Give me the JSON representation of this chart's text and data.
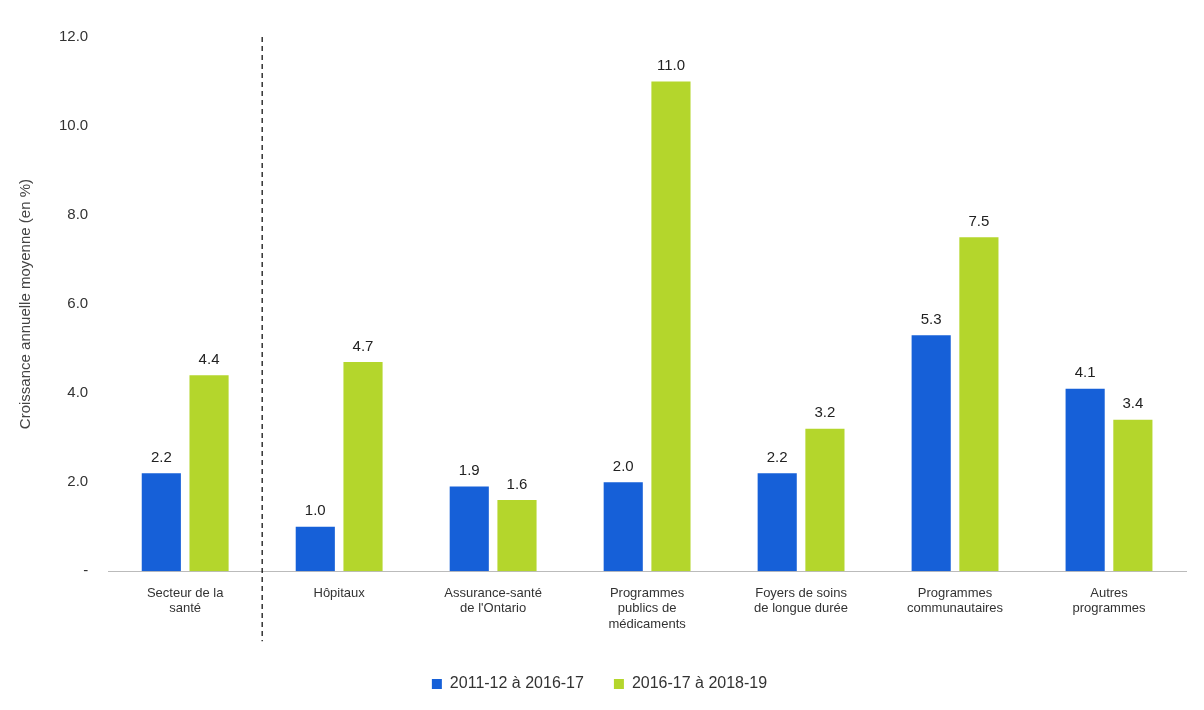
{
  "chart_data": {
    "type": "bar",
    "ylabel": "Croissance annuelle moyenne (en %)",
    "categories": [
      "Secteur de la santé",
      "Hôpitaux",
      "Assurance-santé de l'Ontario",
      "Programmes publics de médicaments",
      "Foyers de soins de longue durée",
      "Programmes communautaires",
      "Autres programmes"
    ],
    "series": [
      {
        "name": "2011-12 à 2016-17",
        "color": "#1660d8",
        "values": [
          2.2,
          1.0,
          1.9,
          2.0,
          2.2,
          5.3,
          4.1
        ],
        "value_labels": [
          "2.2",
          "1.0",
          "1.9",
          "2.0",
          "2.2",
          "5.3",
          "4.1"
        ]
      },
      {
        "name": "2016-17 à 2018-19",
        "color": "#b4d62c",
        "values": [
          4.4,
          4.7,
          1.6,
          11.0,
          3.2,
          7.5,
          3.4
        ],
        "value_labels": [
          "4.4",
          "4.7",
          "1.6",
          "11.0",
          "3.2",
          "7.5",
          "3.4"
        ]
      }
    ],
    "ylim": [
      0,
      12
    ],
    "yticks": [
      {
        "value": 0,
        "label": "-"
      },
      {
        "value": 2,
        "label": "2.0"
      },
      {
        "value": 4,
        "label": "4.0"
      },
      {
        "value": 6,
        "label": "6.0"
      },
      {
        "value": 8,
        "label": "8.0"
      },
      {
        "value": 10,
        "label": "10.0"
      },
      {
        "value": 12,
        "label": "12.0"
      }
    ],
    "grid": false,
    "legend": "bottom"
  }
}
